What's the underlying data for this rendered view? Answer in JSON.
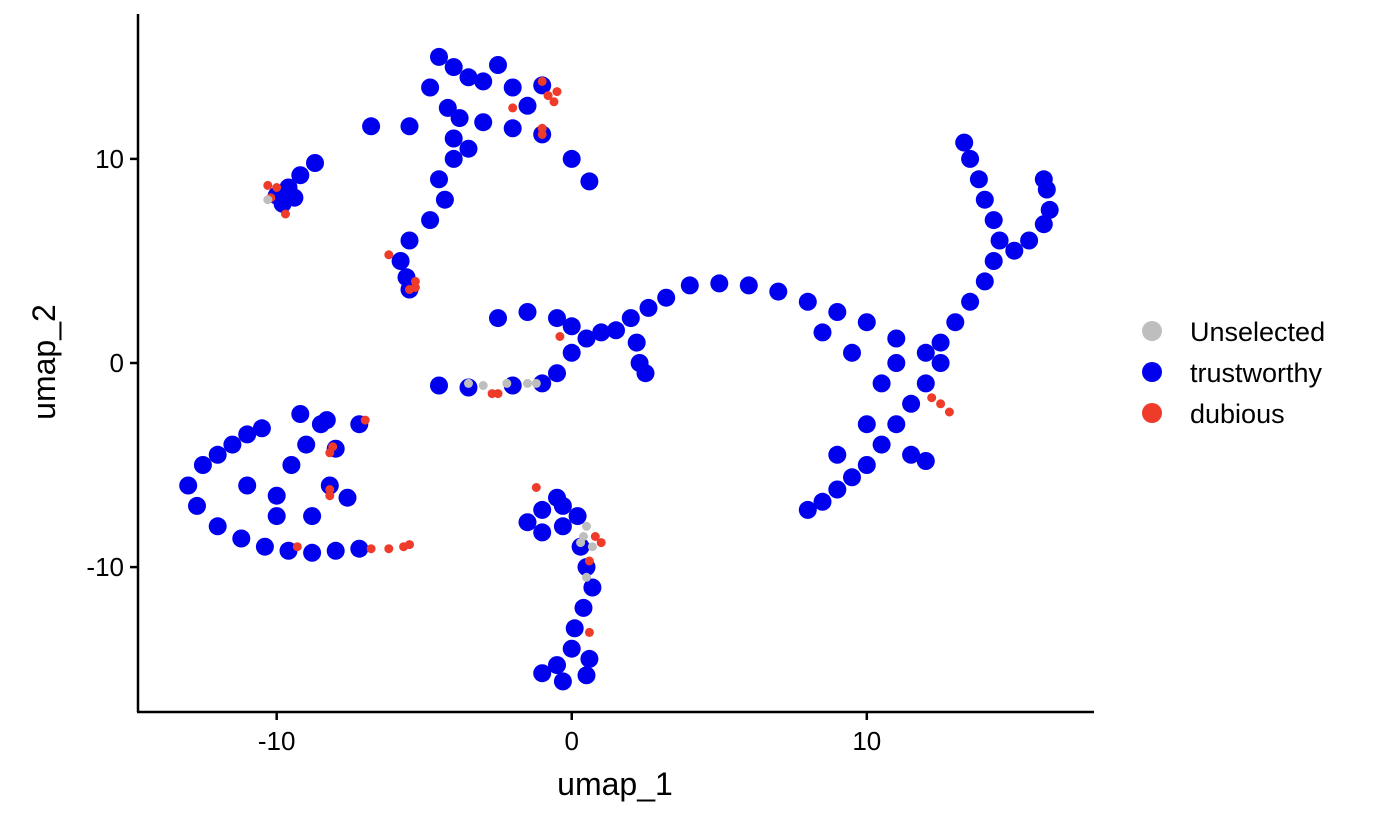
{
  "chart_data": {
    "type": "scatter",
    "xlabel": "umap_1",
    "ylabel": "umap_2",
    "xlim": [
      -14.7,
      17.7
    ],
    "ylim": [
      -17.1,
      17.1
    ],
    "x_ticks": [
      {
        "value": -10,
        "label": "-10"
      },
      {
        "value": 0,
        "label": "0"
      },
      {
        "value": 10,
        "label": "10"
      }
    ],
    "y_ticks": [
      {
        "value": -10,
        "label": "-10"
      },
      {
        "value": 0,
        "label": "0"
      },
      {
        "value": 10,
        "label": "10"
      }
    ],
    "grid": false,
    "legend_position": "right",
    "legend": [
      {
        "name": "Unselected",
        "color": "#bebebe"
      },
      {
        "name": "trustworthy",
        "color": "#0000ee"
      },
      {
        "name": "dubious",
        "color": "#ee3b2a"
      }
    ],
    "clusters": [
      {
        "name": "trustworthy",
        "color": "#0000ee",
        "points": [
          [
            -4.5,
            15.0
          ],
          [
            -4.0,
            14.5
          ],
          [
            -3.5,
            14.0
          ],
          [
            -4.8,
            13.5
          ],
          [
            -3.0,
            13.8
          ],
          [
            -2.0,
            13.5
          ],
          [
            -1.0,
            13.6
          ],
          [
            -4.2,
            12.5
          ],
          [
            -3.8,
            12.0
          ],
          [
            -5.5,
            11.6
          ],
          [
            -6.8,
            11.6
          ],
          [
            -3.0,
            11.8
          ],
          [
            -2.0,
            11.5
          ],
          [
            -1.0,
            11.2
          ],
          [
            0.0,
            10.0
          ],
          [
            0.6,
            8.9
          ],
          [
            -4.0,
            11.0
          ],
          [
            -4.0,
            10.0
          ],
          [
            -4.5,
            9.0
          ],
          [
            -4.3,
            8.0
          ],
          [
            -4.8,
            7.0
          ],
          [
            -5.5,
            6.0
          ],
          [
            -5.8,
            5.0
          ],
          [
            -5.6,
            4.2
          ],
          [
            -5.5,
            3.6
          ],
          [
            -2.5,
            14.6
          ],
          [
            -1.5,
            12.6
          ],
          [
            -3.5,
            10.5
          ],
          [
            -10.0,
            8.2
          ],
          [
            -9.6,
            8.6
          ],
          [
            -9.2,
            9.2
          ],
          [
            -8.7,
            9.8
          ],
          [
            -9.8,
            7.8
          ],
          [
            -9.4,
            8.1
          ],
          [
            -13.0,
            -6.0
          ],
          [
            -12.5,
            -5.0
          ],
          [
            -12.0,
            -4.5
          ],
          [
            -11.5,
            -4.0
          ],
          [
            -11.0,
            -3.5
          ],
          [
            -10.5,
            -3.2
          ],
          [
            -12.7,
            -7.0
          ],
          [
            -12.0,
            -8.0
          ],
          [
            -11.2,
            -8.6
          ],
          [
            -10.4,
            -9.0
          ],
          [
            -9.6,
            -9.2
          ],
          [
            -8.8,
            -9.3
          ],
          [
            -8.0,
            -9.2
          ],
          [
            -7.2,
            -9.1
          ],
          [
            -11.0,
            -6.0
          ],
          [
            -10.0,
            -6.5
          ],
          [
            -9.5,
            -5.0
          ],
          [
            -9.0,
            -4.0
          ],
          [
            -8.5,
            -3.0
          ],
          [
            -8.0,
            -4.2
          ],
          [
            -7.2,
            -3.0
          ],
          [
            -7.6,
            -6.6
          ],
          [
            -8.2,
            -6.0
          ],
          [
            -10.0,
            -7.5
          ],
          [
            -8.8,
            -7.5
          ],
          [
            -9.2,
            -2.5
          ],
          [
            -8.3,
            -2.8
          ],
          [
            -4.5,
            -1.1
          ],
          [
            -3.5,
            -1.2
          ],
          [
            -2.0,
            -1.1
          ],
          [
            -1.0,
            -1.0
          ],
          [
            -0.5,
            -0.5
          ],
          [
            0.0,
            0.5
          ],
          [
            0.5,
            1.2
          ],
          [
            1.0,
            1.5
          ],
          [
            1.5,
            1.6
          ],
          [
            2.0,
            2.2
          ],
          [
            2.6,
            2.7
          ],
          [
            3.2,
            3.2
          ],
          [
            4.0,
            3.8
          ],
          [
            5.0,
            3.9
          ],
          [
            6.0,
            3.8
          ],
          [
            7.0,
            3.5
          ],
          [
            8.0,
            3.0
          ],
          [
            9.0,
            2.5
          ],
          [
            10.0,
            2.0
          ],
          [
            11.0,
            1.2
          ],
          [
            12.0,
            0.5
          ],
          [
            12.5,
            0.0
          ],
          [
            12.0,
            -1.0
          ],
          [
            11.5,
            -2.0
          ],
          [
            11.0,
            -3.0
          ],
          [
            10.5,
            -4.0
          ],
          [
            10.0,
            -5.0
          ],
          [
            9.5,
            -5.6
          ],
          [
            9.0,
            -6.2
          ],
          [
            8.5,
            -6.8
          ],
          [
            8.0,
            -7.2
          ],
          [
            11.5,
            -4.5
          ],
          [
            12.0,
            -4.8
          ],
          [
            10.5,
            -1.0
          ],
          [
            9.5,
            0.5
          ],
          [
            8.5,
            1.5
          ],
          [
            10.0,
            -3.0
          ],
          [
            9.0,
            -4.5
          ],
          [
            11.0,
            0.0
          ],
          [
            12.5,
            1.0
          ],
          [
            13.0,
            2.0
          ],
          [
            13.5,
            3.0
          ],
          [
            14.0,
            4.0
          ],
          [
            14.3,
            5.0
          ],
          [
            14.5,
            6.0
          ],
          [
            14.3,
            7.0
          ],
          [
            14.0,
            8.0
          ],
          [
            13.8,
            9.0
          ],
          [
            13.5,
            10.0
          ],
          [
            13.3,
            10.8
          ],
          [
            15.0,
            5.5
          ],
          [
            15.5,
            6.0
          ],
          [
            16.0,
            6.8
          ],
          [
            16.2,
            7.5
          ],
          [
            16.1,
            8.5
          ],
          [
            16.0,
            9.0
          ],
          [
            -2.5,
            2.2
          ],
          [
            -1.5,
            2.5
          ],
          [
            -0.5,
            2.2
          ],
          [
            0.0,
            1.8
          ],
          [
            2.2,
            1.0
          ],
          [
            2.3,
            0.0
          ],
          [
            2.5,
            -0.5
          ],
          [
            -0.3,
            -7.0
          ],
          [
            -0.5,
            -6.6
          ],
          [
            -1.0,
            -7.2
          ],
          [
            -1.5,
            -7.8
          ],
          [
            -1.0,
            -8.3
          ],
          [
            -0.3,
            -8.0
          ],
          [
            0.2,
            -7.5
          ],
          [
            0.3,
            -9.0
          ],
          [
            0.5,
            -10.0
          ],
          [
            0.7,
            -11.0
          ],
          [
            0.4,
            -12.0
          ],
          [
            0.1,
            -13.0
          ],
          [
            0.0,
            -14.0
          ],
          [
            -0.5,
            -14.8
          ],
          [
            -1.0,
            -15.2
          ],
          [
            0.5,
            -15.3
          ],
          [
            -0.3,
            -15.6
          ],
          [
            0.6,
            -14.5
          ]
        ]
      },
      {
        "name": "dubious",
        "color": "#ee3b2a",
        "points": [
          [
            -1.0,
            13.8
          ],
          [
            -0.5,
            13.3
          ],
          [
            -0.8,
            13.1
          ],
          [
            -0.6,
            12.8
          ],
          [
            -2.0,
            12.5
          ],
          [
            -1.0,
            11.5
          ],
          [
            -1.0,
            11.2
          ],
          [
            -10.3,
            8.7
          ],
          [
            -10.0,
            8.6
          ],
          [
            -10.2,
            8.1
          ],
          [
            -9.7,
            7.3
          ],
          [
            -6.2,
            5.3
          ],
          [
            -5.5,
            3.6
          ],
          [
            -5.3,
            4.0
          ],
          [
            -5.3,
            3.7
          ],
          [
            -7.0,
            -2.8
          ],
          [
            -8.1,
            -4.1
          ],
          [
            -8.2,
            -4.4
          ],
          [
            -8.2,
            -6.2
          ],
          [
            -8.2,
            -6.5
          ],
          [
            -9.3,
            -9.0
          ],
          [
            -6.8,
            -9.1
          ],
          [
            -6.2,
            -9.1
          ],
          [
            -5.7,
            -9.0
          ],
          [
            -5.5,
            -8.9
          ],
          [
            -2.7,
            -1.5
          ],
          [
            -2.5,
            -1.5
          ],
          [
            -0.4,
            1.3
          ],
          [
            12.2,
            -1.7
          ],
          [
            12.5,
            -2.0
          ],
          [
            12.8,
            -2.4
          ],
          [
            -1.2,
            -6.1
          ],
          [
            0.8,
            -8.5
          ],
          [
            1.0,
            -8.8
          ],
          [
            0.6,
            -9.7
          ],
          [
            0.6,
            -13.2
          ]
        ]
      },
      {
        "name": "Unselected",
        "color": "#bebebe",
        "points": [
          [
            -3.5,
            -1.0
          ],
          [
            -3.0,
            -1.1
          ],
          [
            -2.2,
            -1.0
          ],
          [
            -1.5,
            -1.0
          ],
          [
            -1.2,
            -1.0
          ],
          [
            -10.3,
            8.0
          ],
          [
            0.5,
            -8.0
          ],
          [
            0.4,
            -8.5
          ],
          [
            0.7,
            -9.0
          ],
          [
            0.3,
            -8.8
          ],
          [
            0.5,
            -10.5
          ]
        ]
      }
    ]
  }
}
